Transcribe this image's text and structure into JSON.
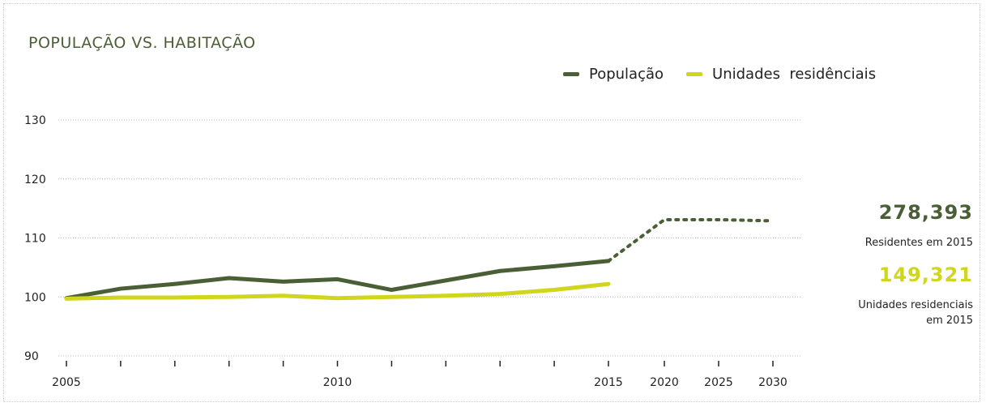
{
  "colors": {
    "population": "#4a5f35",
    "housing": "#cfd61b",
    "grid": "#b9b9b9"
  },
  "chart_data": {
    "type": "line",
    "title": "POPULAÇÃO VS. HABITAÇÃO",
    "xlabel": "",
    "ylabel": "",
    "ylim": [
      90,
      130
    ],
    "y_ticks": [
      90,
      100,
      110,
      120,
      130
    ],
    "x_tick_labels": [
      {
        "x": 2005,
        "label": "2005"
      },
      {
        "x": 2010,
        "label": "2010"
      },
      {
        "x": 2015,
        "label": "2015"
      },
      {
        "x": 2020,
        "label": "2020"
      },
      {
        "x": 2025,
        "label": "2025"
      },
      {
        "x": 2030,
        "label": "2030"
      }
    ],
    "x_minor_ticks": [
      2006,
      2007,
      2008,
      2009,
      2011,
      2012,
      2013,
      2014
    ],
    "grid": true,
    "legend_position": "top-right",
    "series": [
      {
        "name": "População",
        "color": "#4a5f35",
        "x": [
          2005,
          2006,
          2007,
          2008,
          2009,
          2010,
          2011,
          2012,
          2013,
          2014,
          2015
        ],
        "values": [
          99.8,
          101.4,
          102.2,
          103.2,
          102.6,
          103.0,
          101.2,
          102.8,
          104.4,
          105.2,
          106.1
        ],
        "projection": {
          "style": "dotted",
          "x": [
            2015,
            2020,
            2025,
            2030
          ],
          "values": [
            106.1,
            113.1,
            113.1,
            112.9
          ]
        }
      },
      {
        "name": "Unidades  residênciais",
        "color": "#cfd61b",
        "x": [
          2005,
          2006,
          2007,
          2008,
          2009,
          2010,
          2011,
          2012,
          2013,
          2014,
          2015
        ],
        "values": [
          99.7,
          99.9,
          99.9,
          100.0,
          100.2,
          99.8,
          100.0,
          100.2,
          100.5,
          101.2,
          102.2
        ]
      }
    ]
  },
  "callouts": [
    {
      "value": "278,393",
      "caption_lines": [
        "Residentes em 2015"
      ]
    },
    {
      "value": "149,321",
      "caption_lines": [
        "Unidades residenciais",
        "em 2015"
      ]
    }
  ]
}
